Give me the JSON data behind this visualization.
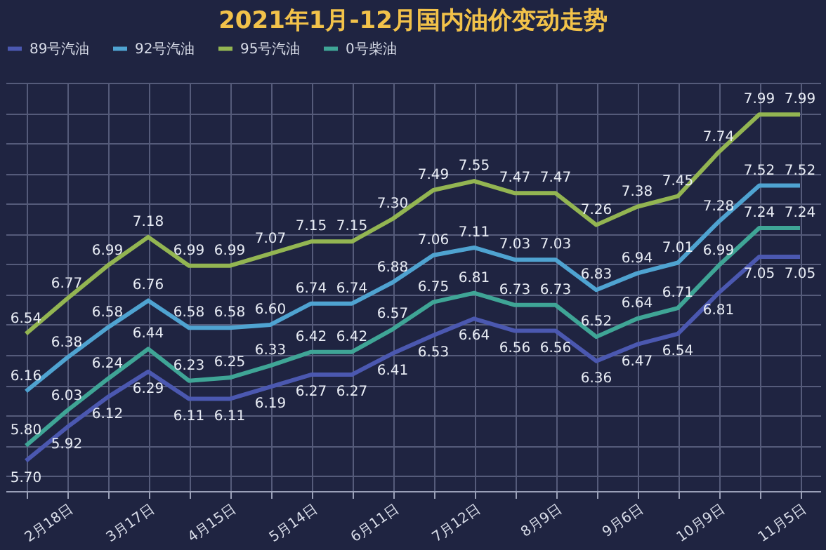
{
  "chart_data": {
    "type": "line",
    "title": "2021年1月-12月国内油价变动走势",
    "categories": [
      null,
      "2月18日",
      null,
      "3月17日",
      null,
      "4月15日",
      null,
      "5月14日",
      null,
      "6月11日",
      null,
      "7月12日",
      null,
      "8月9日",
      null,
      "9月6日",
      null,
      "10月9日",
      null,
      "11月5日"
    ],
    "series": [
      {
        "name": "89号汽油",
        "color": "#4b58b0",
        "values": [
          5.7,
          5.92,
          6.12,
          6.29,
          6.11,
          6.11,
          6.19,
          6.27,
          6.27,
          6.41,
          6.53,
          6.64,
          6.56,
          6.56,
          6.36,
          6.47,
          6.54,
          6.81,
          7.05,
          7.05
        ],
        "value_labels": [
          "5.70",
          "5.92",
          "6.12",
          "6.29",
          "6.11",
          "6.11",
          "6.19",
          "6.27",
          "6.27",
          "6.41",
          "6.53",
          "6.64",
          "6.56",
          "6.56",
          "6.36",
          "6.47",
          "6.54",
          "6.81",
          "7.05",
          "7.05"
        ]
      },
      {
        "name": "92号汽油",
        "color": "#4fa3d1",
        "values": [
          6.16,
          6.38,
          6.58,
          6.76,
          6.58,
          6.58,
          6.6,
          6.74,
          6.74,
          6.88,
          7.06,
          7.11,
          7.03,
          7.03,
          6.83,
          6.94,
          7.01,
          7.28,
          7.52,
          7.52
        ],
        "value_labels": [
          "6.16",
          "6.38",
          "6.58",
          "6.76",
          "6.58",
          "6.58",
          "6.60",
          "6.74",
          "6.74",
          "6.88",
          "7.06",
          "7.11",
          "7.03",
          "7.03",
          "6.83",
          "6.94",
          "7.01",
          "7.28",
          "7.52",
          "7.52"
        ]
      },
      {
        "name": "95号汽油",
        "color": "#93b552",
        "values": [
          6.54,
          6.77,
          6.99,
          7.18,
          6.99,
          6.99,
          7.07,
          7.15,
          7.15,
          7.3,
          7.49,
          7.55,
          7.47,
          7.47,
          7.26,
          7.38,
          7.45,
          7.74,
          7.99,
          7.99
        ],
        "value_labels": [
          "6.54",
          "6.77",
          "6.99",
          "7.18",
          "6.99",
          "6.99",
          "7.07",
          "7.15",
          "7.15",
          "7.30",
          "7.49",
          "7.55",
          "7.47",
          "7.47",
          "7.26",
          "7.38",
          "7.45",
          "7.74",
          "7.99",
          "7.99"
        ]
      },
      {
        "name": "0号柴油",
        "color": "#3fa596",
        "values": [
          5.8,
          6.03,
          6.24,
          6.44,
          6.23,
          6.25,
          6.33,
          6.42,
          6.42,
          6.57,
          6.75,
          6.81,
          6.73,
          6.73,
          6.52,
          6.64,
          6.71,
          6.99,
          7.24,
          7.24
        ],
        "value_labels": [
          "5.80",
          "6.03",
          "6.24",
          "6.44",
          "6.23",
          "6.25",
          "6.33",
          "6.42",
          "6.42",
          "6.57",
          "6.75",
          "6.81",
          "6.73",
          "6.73",
          "6.52",
          "6.64",
          "6.71",
          "6.99",
          "7.24",
          "7.24"
        ]
      }
    ],
    "ylim": [
      5.5,
      8.2
    ],
    "tick_labels": "x",
    "grid": true,
    "legend": "top",
    "marker": "none",
    "line_style": "solid"
  }
}
